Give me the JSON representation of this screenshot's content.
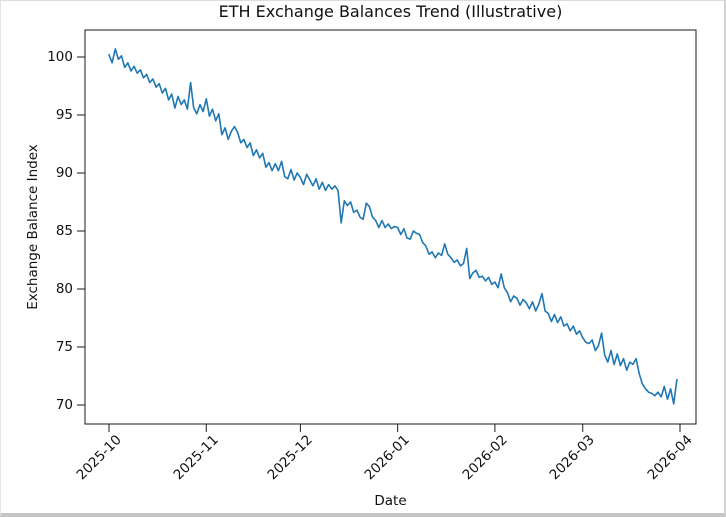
{
  "chart_data": {
    "type": "line",
    "title": "ETH Exchange Balances Trend (Illustrative)",
    "xlabel": "Date",
    "ylabel": "Exchange Balance Index",
    "x_tick_labels": [
      "2025-10",
      "2025-11",
      "2025-12",
      "2026-01",
      "2026-02",
      "2026-03",
      "2026-04"
    ],
    "x_tick_day_offsets": [
      0,
      31,
      61,
      92,
      123,
      151,
      182
    ],
    "y_ticks": [
      70,
      75,
      80,
      85,
      90,
      95,
      100
    ],
    "ylim": [
      68.4,
      102.3
    ],
    "grid": false,
    "legend": "none",
    "line_color": "#1f77b4",
    "axis_color": "#1a1a1a",
    "start_date": "2025-10-01",
    "end_date": "2026-03-31",
    "frequency": "daily",
    "series": [
      {
        "name": "Exchange Balance Index",
        "values": [
          100.2,
          99.5,
          100.7,
          99.8,
          100.1,
          99.1,
          99.5,
          98.8,
          99.2,
          98.6,
          98.9,
          98.2,
          98.5,
          97.8,
          98.1,
          97.4,
          97.7,
          96.9,
          97.3,
          96.3,
          96.8,
          95.6,
          96.6,
          95.9,
          96.3,
          95.5,
          97.8,
          95.6,
          95.1,
          95.9,
          95.3,
          96.4,
          94.9,
          95.5,
          94.5,
          95.1,
          93.3,
          93.9,
          92.9,
          93.6,
          94.0,
          93.5,
          92.6,
          92.9,
          92.2,
          92.6,
          91.5,
          92.0,
          91.3,
          91.7,
          90.5,
          90.9,
          90.2,
          90.8,
          90.2,
          91.0,
          89.7,
          89.5,
          90.3,
          89.4,
          90.0,
          89.6,
          89.0,
          89.9,
          89.4,
          88.9,
          89.5,
          88.6,
          89.2,
          88.5,
          89.0,
          88.6,
          88.9,
          88.5,
          85.7,
          87.6,
          87.2,
          87.5,
          86.6,
          86.8,
          86.2,
          86.0,
          87.4,
          87.1,
          86.2,
          85.9,
          85.3,
          85.9,
          85.3,
          85.6,
          85.2,
          85.4,
          85.3,
          84.7,
          85.2,
          84.4,
          84.3,
          85.0,
          84.8,
          84.7,
          84.0,
          83.7,
          83.0,
          83.2,
          82.7,
          83.1,
          82.9,
          83.9,
          83.0,
          82.7,
          82.3,
          82.5,
          82.0,
          82.2,
          83.5,
          80.9,
          81.4,
          81.6,
          81.0,
          81.1,
          80.7,
          81.0,
          80.4,
          80.6,
          80.1,
          81.3,
          80.1,
          79.7,
          78.9,
          79.4,
          79.2,
          78.6,
          79.1,
          78.8,
          78.3,
          78.9,
          78.1,
          78.7,
          79.6,
          78.1,
          77.9,
          77.2,
          77.8,
          77.1,
          77.6,
          76.8,
          77.0,
          76.4,
          76.8,
          76.1,
          76.4,
          75.8,
          75.4,
          75.3,
          75.6,
          74.7,
          75.1,
          76.2,
          74.3,
          73.7,
          74.7,
          73.5,
          74.4,
          73.4,
          74.0,
          73.0,
          73.7,
          73.5,
          74.0,
          72.7,
          71.8,
          71.4,
          71.1,
          71.0,
          70.8,
          71.1,
          70.7,
          71.6,
          70.5,
          71.4,
          70.1,
          72.2
        ]
      }
    ]
  }
}
